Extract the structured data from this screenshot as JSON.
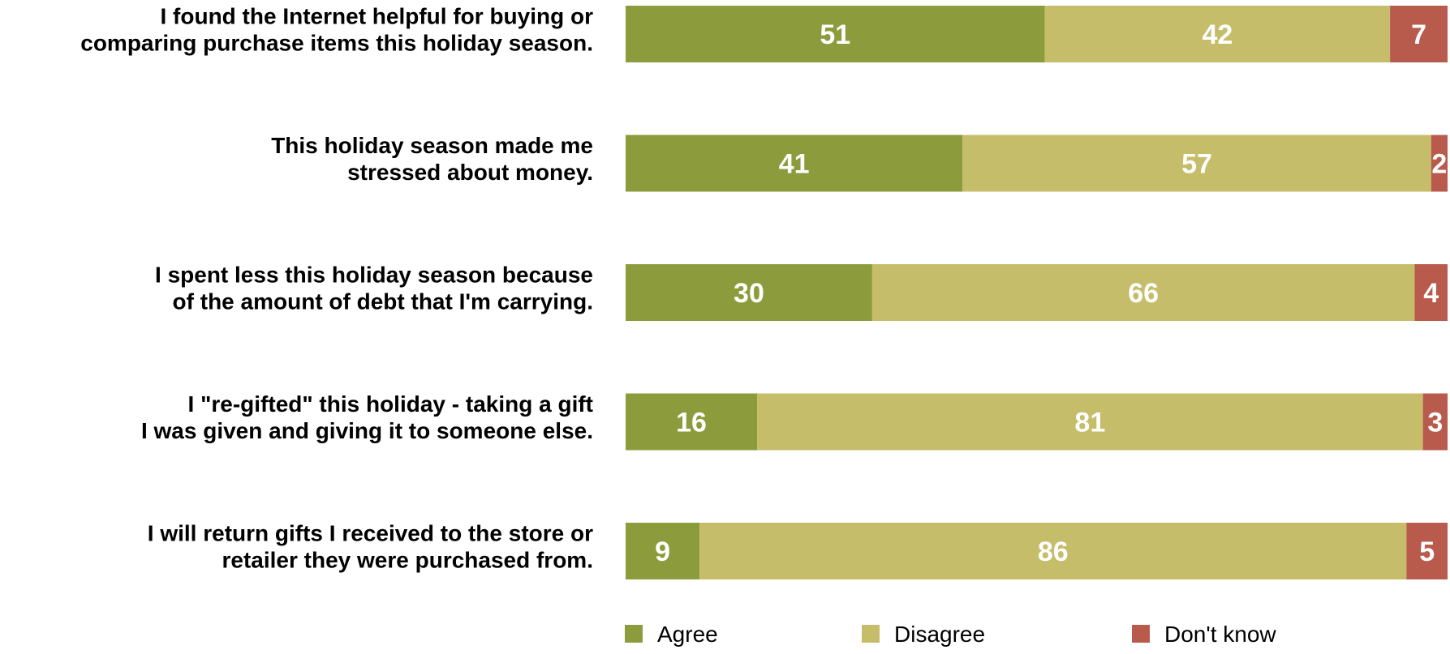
{
  "chart_data": {
    "type": "bar",
    "orientation": "horizontal",
    "stacked": true,
    "categories": [
      [
        "I found the Internet helpful for buying or",
        "comparing purchase items this holiday season."
      ],
      [
        "This holiday season made me",
        "stressed about money."
      ],
      [
        "I spent less this holiday season because",
        "of the amount of debt that I'm carrying."
      ],
      [
        "I \"re-gifted\" this holiday - taking a gift",
        "I was given and giving it to someone else."
      ],
      [
        "I will return gifts I received to the store or",
        "retailer they were purchased from."
      ]
    ],
    "series": [
      {
        "name": "Agree",
        "color": "#8c9b3b",
        "values": [
          51,
          41,
          30,
          16,
          9
        ]
      },
      {
        "name": "Disagree",
        "color": "#c5bd6a",
        "values": [
          42,
          57,
          66,
          81,
          86
        ]
      },
      {
        "name": "Don't know",
        "color": "#b85a4c",
        "values": [
          7,
          2,
          4,
          3,
          5
        ]
      }
    ],
    "xlim": [
      0,
      100
    ],
    "grid": false,
    "legend_position": "bottom",
    "title": "",
    "xlabel": "",
    "ylabel": ""
  }
}
